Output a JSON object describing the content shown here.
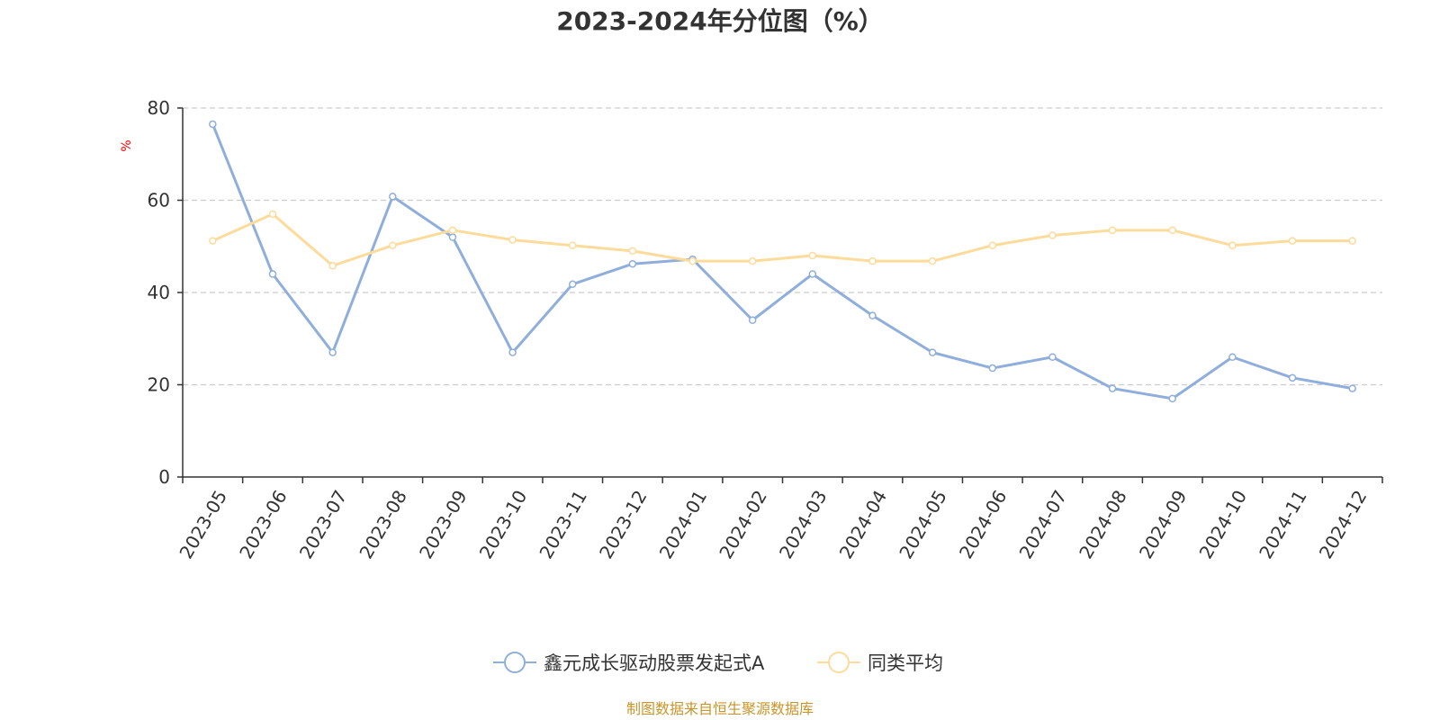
{
  "chart_data": {
    "type": "line",
    "title": "2023-2024年分位图（%）",
    "xlabel": "",
    "ylabel": "%",
    "ylim": [
      0,
      80
    ],
    "yticks": [
      0,
      20,
      40,
      60,
      80
    ],
    "grid": true,
    "legend_position": "bottom-center",
    "categories": [
      "2023-05",
      "2023-06",
      "2023-07",
      "2023-08",
      "2023-09",
      "2023-10",
      "2023-11",
      "2023-12",
      "2024-01",
      "2024-02",
      "2024-03",
      "2024-04",
      "2024-05",
      "2024-06",
      "2024-07",
      "2024-08",
      "2024-09",
      "2024-10",
      "2024-11",
      "2024-12"
    ],
    "series": [
      {
        "name": "鑫元成长驱动股票发起式A",
        "color": "#8FAEDB",
        "values": [
          76.5,
          44.0,
          27.0,
          60.8,
          52.0,
          27.0,
          41.8,
          46.2,
          47.2,
          34.0,
          44.0,
          35.0,
          27.0,
          23.6,
          26.0,
          19.2,
          17.0,
          26.0,
          21.5,
          19.2
        ]
      },
      {
        "name": "同类平均",
        "color": "#FCDB9B",
        "values": [
          51.2,
          57.0,
          45.8,
          50.2,
          53.5,
          51.4,
          50.2,
          49.0,
          46.8,
          46.8,
          48.0,
          46.8,
          46.8,
          50.2,
          52.4,
          53.5,
          53.5,
          50.2,
          51.2,
          51.2
        ]
      }
    ]
  },
  "footer": {
    "source_text": "制图数据来自恒生聚源数据库",
    "color": "#C8952A"
  },
  "ylabel_color": "#FF0000"
}
